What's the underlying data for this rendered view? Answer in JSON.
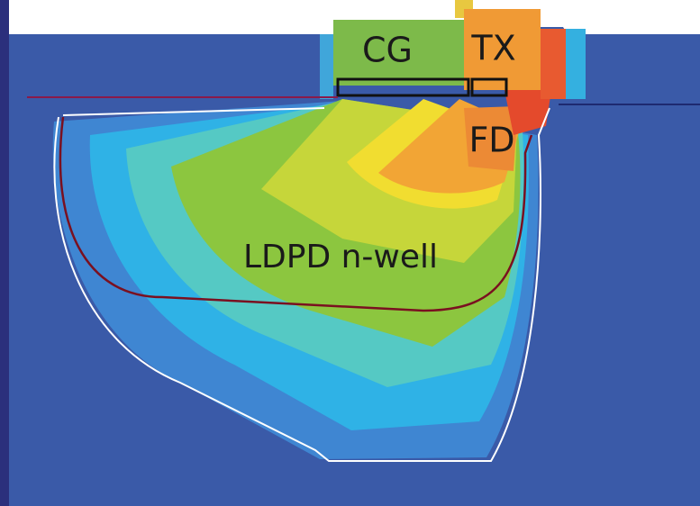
{
  "labels": {
    "cg": "CG",
    "tx": "TX",
    "fd": "FD",
    "well": "LDPD n-well"
  }
}
